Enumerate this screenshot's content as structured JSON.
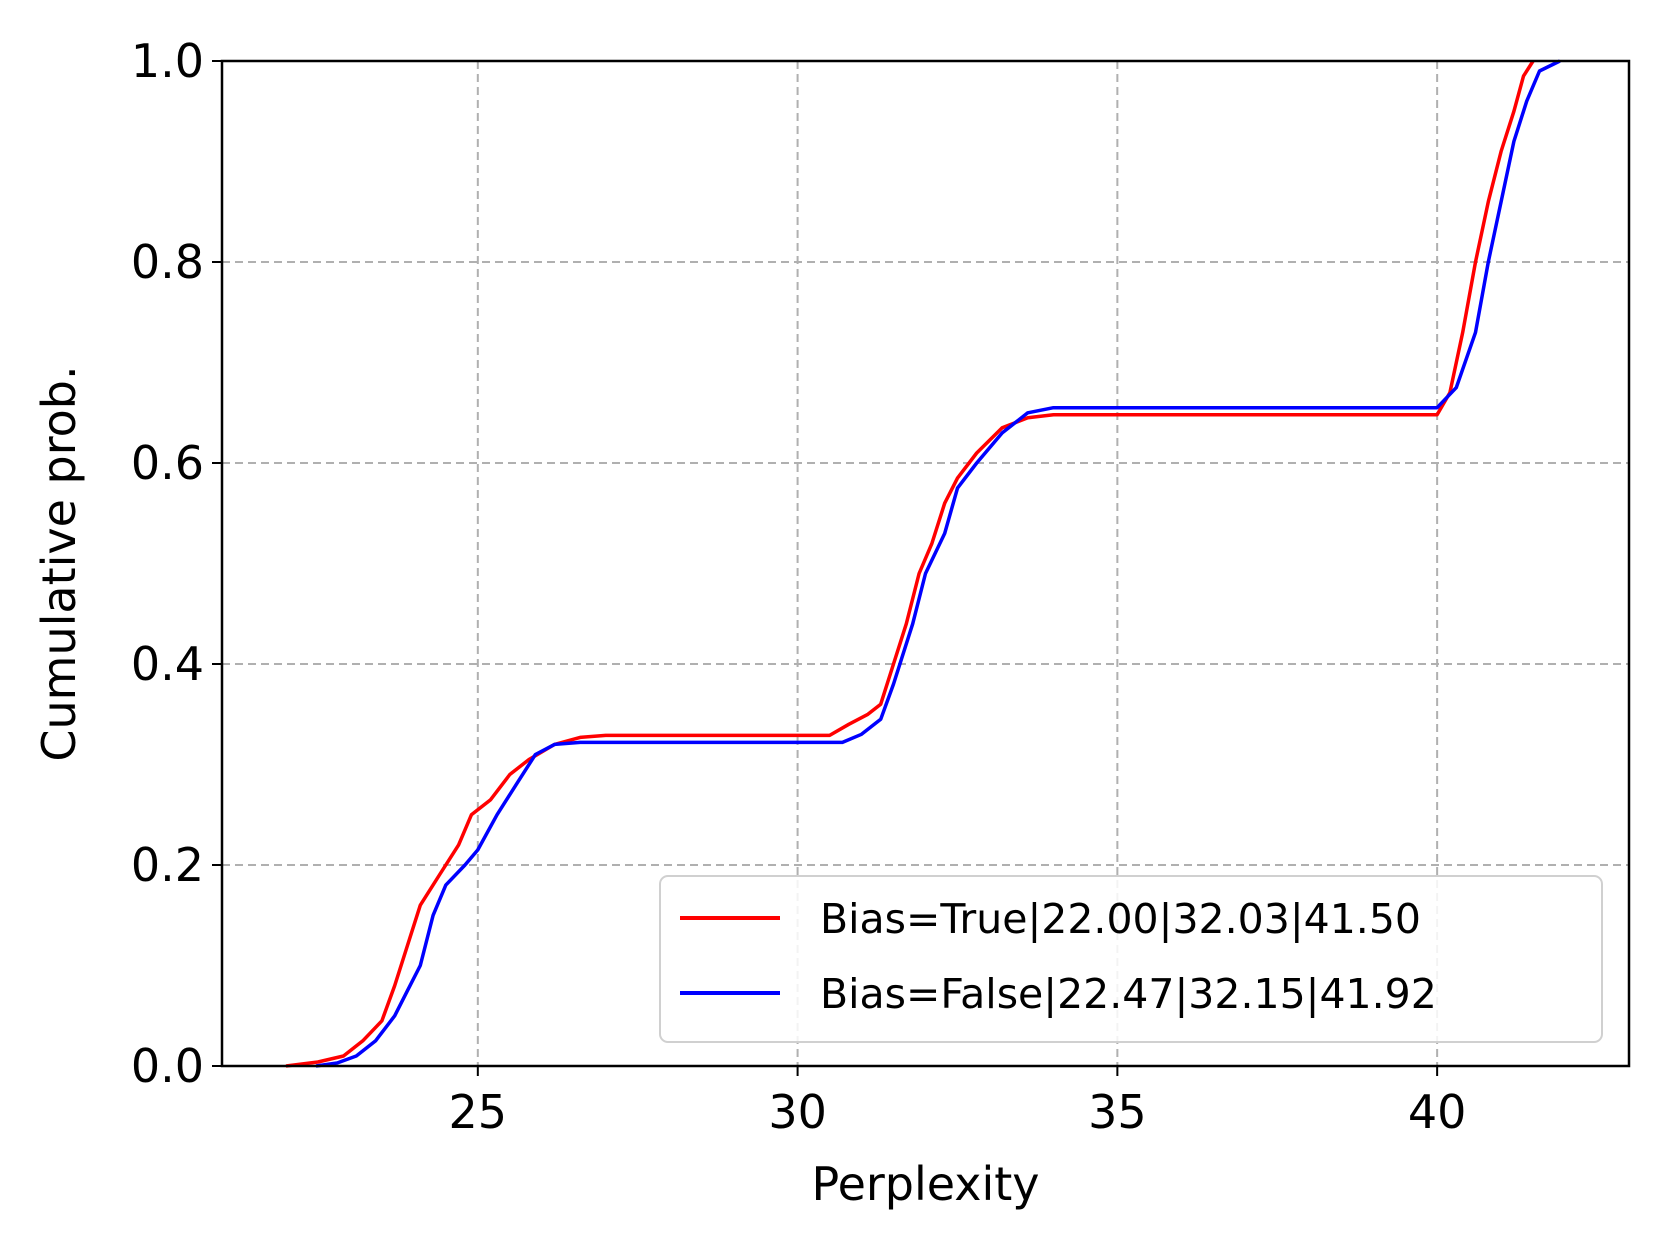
{
  "chart_data": {
    "type": "line",
    "title": "",
    "xlabel": "Perplexity",
    "ylabel": "Cumulative prob.",
    "xlim": [
      21,
      43
    ],
    "ylim": [
      0.0,
      1.0
    ],
    "x_ticks": [
      25,
      30,
      35,
      40
    ],
    "x_tick_labels": [
      "25",
      "30",
      "35",
      "40"
    ],
    "y_ticks": [
      0.0,
      0.2,
      0.4,
      0.6,
      0.8,
      1.0
    ],
    "y_tick_labels": [
      "0.0",
      "0.2",
      "0.4",
      "0.6",
      "0.8",
      "1.0"
    ],
    "grid": true,
    "legend_position": "lower-right",
    "series": [
      {
        "name": "Bias=True|22.00|32.03|41.50",
        "color": "#ff0000",
        "points": [
          [
            22.0,
            0.0
          ],
          [
            22.5,
            0.004
          ],
          [
            22.9,
            0.01
          ],
          [
            23.2,
            0.025
          ],
          [
            23.5,
            0.045
          ],
          [
            23.7,
            0.08
          ],
          [
            23.9,
            0.12
          ],
          [
            24.1,
            0.16
          ],
          [
            24.4,
            0.19
          ],
          [
            24.7,
            0.22
          ],
          [
            24.9,
            0.25
          ],
          [
            25.2,
            0.265
          ],
          [
            25.5,
            0.29
          ],
          [
            25.8,
            0.305
          ],
          [
            26.2,
            0.32
          ],
          [
            26.6,
            0.327
          ],
          [
            27.0,
            0.329
          ],
          [
            30.5,
            0.329
          ],
          [
            30.8,
            0.34
          ],
          [
            31.1,
            0.35
          ],
          [
            31.3,
            0.36
          ],
          [
            31.5,
            0.4
          ],
          [
            31.7,
            0.44
          ],
          [
            31.9,
            0.49
          ],
          [
            32.1,
            0.52
          ],
          [
            32.3,
            0.56
          ],
          [
            32.5,
            0.585
          ],
          [
            32.8,
            0.61
          ],
          [
            33.2,
            0.635
          ],
          [
            33.6,
            0.645
          ],
          [
            34.0,
            0.648
          ],
          [
            40.0,
            0.648
          ],
          [
            40.2,
            0.67
          ],
          [
            40.4,
            0.73
          ],
          [
            40.6,
            0.8
          ],
          [
            40.8,
            0.86
          ],
          [
            41.0,
            0.91
          ],
          [
            41.2,
            0.95
          ],
          [
            41.35,
            0.985
          ],
          [
            41.5,
            1.0
          ]
        ]
      },
      {
        "name": "Bias=False|22.47|32.15|41.92",
        "color": "#0000ff",
        "points": [
          [
            22.47,
            0.0
          ],
          [
            22.8,
            0.003
          ],
          [
            23.1,
            0.01
          ],
          [
            23.4,
            0.025
          ],
          [
            23.7,
            0.05
          ],
          [
            23.9,
            0.075
          ],
          [
            24.1,
            0.1
          ],
          [
            24.3,
            0.15
          ],
          [
            24.5,
            0.18
          ],
          [
            24.8,
            0.2
          ],
          [
            25.0,
            0.215
          ],
          [
            25.3,
            0.25
          ],
          [
            25.6,
            0.28
          ],
          [
            25.9,
            0.31
          ],
          [
            26.2,
            0.32
          ],
          [
            26.6,
            0.322
          ],
          [
            30.7,
            0.322
          ],
          [
            31.0,
            0.33
          ],
          [
            31.3,
            0.345
          ],
          [
            31.5,
            0.38
          ],
          [
            31.8,
            0.44
          ],
          [
            32.0,
            0.49
          ],
          [
            32.3,
            0.53
          ],
          [
            32.5,
            0.575
          ],
          [
            32.8,
            0.6
          ],
          [
            33.2,
            0.63
          ],
          [
            33.6,
            0.65
          ],
          [
            34.0,
            0.655
          ],
          [
            40.0,
            0.655
          ],
          [
            40.3,
            0.675
          ],
          [
            40.6,
            0.73
          ],
          [
            40.8,
            0.8
          ],
          [
            41.0,
            0.86
          ],
          [
            41.2,
            0.92
          ],
          [
            41.4,
            0.96
          ],
          [
            41.6,
            0.99
          ],
          [
            41.92,
            1.0
          ]
        ]
      }
    ]
  }
}
